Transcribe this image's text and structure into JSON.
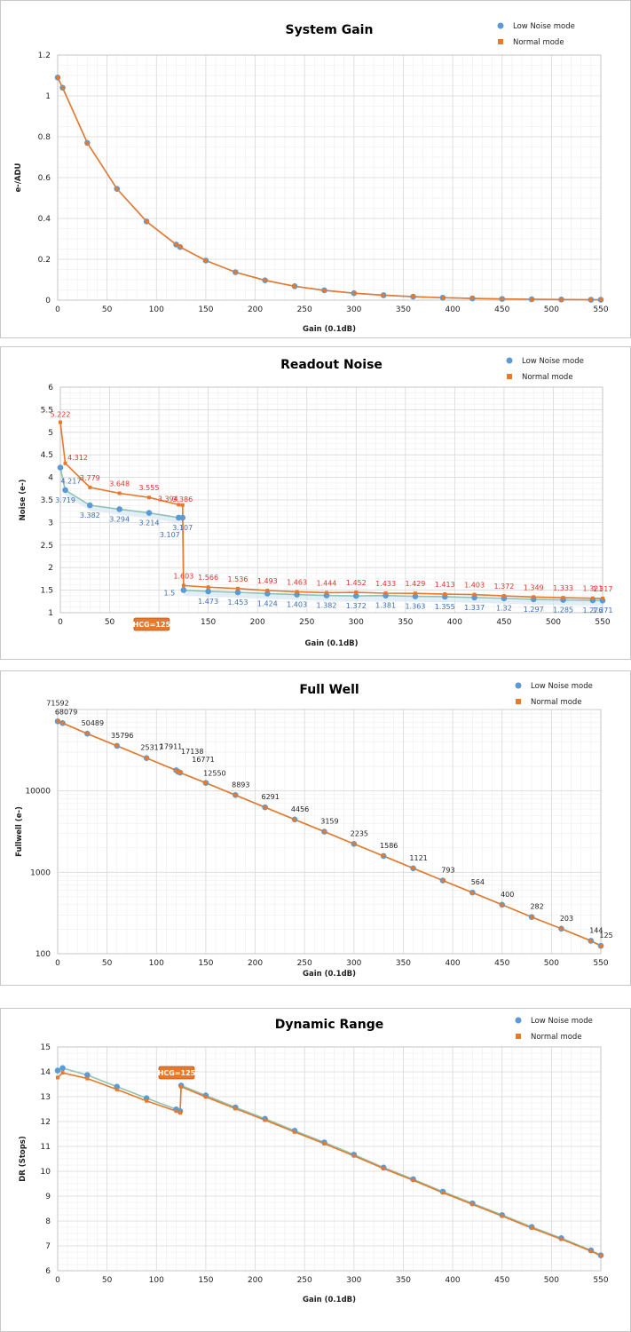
{
  "colors": {
    "low_noise": "#5b9bd5",
    "normal": "#e8782a",
    "red_label": "#e8312b",
    "blue_label": "#3a6fb5",
    "black_label": "#222222",
    "grid_major": "#d9d9d9",
    "grid_minor": "#eeeeee",
    "badge": "#e8782a"
  },
  "chart_data": [
    {
      "type": "line",
      "title": "System Gain",
      "xlabel": "Gain (0.1dB)",
      "ylabel": "e-/ADU",
      "xlim": [
        0,
        550
      ],
      "ylim": [
        0,
        1.2
      ],
      "x_ticks": [
        0,
        50,
        100,
        150,
        200,
        250,
        300,
        350,
        400,
        450,
        500,
        550
      ],
      "y_ticks": [
        0,
        0.2,
        0.4,
        0.6,
        0.8,
        1,
        1.2
      ],
      "y_tick_labels": [
        "0",
        "0.2",
        "0.4",
        "0.6",
        "0.8",
        "1",
        "1.2"
      ],
      "legend": "top-right",
      "grid": true,
      "series": [
        {
          "name": "Low Noise mode",
          "marker": "circle",
          "x": [
            0,
            5,
            30,
            60,
            90,
            120,
            124,
            150,
            180,
            210,
            240,
            270,
            300,
            330,
            360,
            390,
            420,
            450,
            480,
            510,
            540,
            550
          ],
          "y": [
            1.09,
            1.04,
            0.77,
            0.545,
            0.385,
            0.272,
            0.26,
            0.194,
            0.137,
            0.097,
            0.068,
            0.048,
            0.034,
            0.024,
            0.017,
            0.012,
            0.0085,
            0.006,
            0.0043,
            0.003,
            0.0021,
            0.002
          ]
        },
        {
          "name": "Normal mode",
          "marker": "square",
          "x": [
            0,
            5,
            30,
            60,
            90,
            120,
            124,
            150,
            180,
            210,
            240,
            270,
            300,
            330,
            360,
            390,
            420,
            450,
            480,
            510,
            540,
            550
          ],
          "y": [
            1.09,
            1.04,
            0.77,
            0.545,
            0.385,
            0.272,
            0.26,
            0.194,
            0.137,
            0.097,
            0.068,
            0.048,
            0.034,
            0.024,
            0.017,
            0.012,
            0.0085,
            0.006,
            0.0043,
            0.003,
            0.0021,
            0.002
          ]
        }
      ]
    },
    {
      "type": "line",
      "title": "Readout Noise",
      "xlabel": "Gain (0.1dB)",
      "ylabel": "Noise (e-)",
      "xlim": [
        0,
        550
      ],
      "ylim": [
        1,
        6
      ],
      "x_ticks": [
        0,
        50,
        100,
        150,
        200,
        250,
        300,
        350,
        400,
        450,
        500,
        550
      ],
      "y_ticks": [
        1,
        1.5,
        2,
        2.5,
        3,
        3.5,
        4,
        4.5,
        5,
        5.5,
        6
      ],
      "y_tick_labels": [
        "1",
        "1.5",
        "2",
        "2.5",
        "3",
        "3.5",
        "4",
        "4.5",
        "5",
        "5.5",
        "6"
      ],
      "legend": "top-right",
      "grid": true,
      "annotation": "HCG=125",
      "series": [
        {
          "name": "Low Noise mode",
          "marker": "circle",
          "x": [
            0,
            5,
            30,
            60,
            90,
            120,
            124,
            125,
            150,
            180,
            210,
            240,
            270,
            300,
            330,
            360,
            390,
            420,
            450,
            480,
            510,
            540,
            550
          ],
          "y": [
            4.217,
            3.719,
            3.382,
            3.294,
            3.214,
            3.107,
            3.107,
            1.5,
            1.473,
            1.453,
            1.424,
            1.403,
            1.382,
            1.372,
            1.381,
            1.363,
            1.355,
            1.337,
            1.32,
            1.297,
            1.285,
            1.276,
            1.271
          ],
          "labels": [
            "4.217",
            "3.719",
            "3.382",
            "3.294",
            "3.214",
            "3.107",
            "3.107",
            "1.5",
            "1.473",
            "1.453",
            "1.424",
            "1.403",
            "1.382",
            "1.372",
            "1.381",
            "1.363",
            "1.355",
            "1.337",
            "1.32",
            "1.297",
            "1.285",
            "1.276",
            "1.271"
          ]
        },
        {
          "name": "Normal mode",
          "marker": "square",
          "x": [
            0,
            5,
            30,
            60,
            90,
            120,
            124,
            125,
            150,
            180,
            210,
            240,
            270,
            300,
            330,
            360,
            390,
            420,
            450,
            480,
            510,
            540,
            550
          ],
          "y": [
            5.222,
            4.312,
            3.779,
            3.648,
            3.555,
            3.394,
            3.386,
            1.603,
            1.566,
            1.536,
            1.493,
            1.463,
            1.444,
            1.452,
            1.433,
            1.429,
            1.413,
            1.403,
            1.372,
            1.349,
            1.333,
            1.321,
            1.317
          ],
          "labels": [
            "5.222",
            "4.312",
            "3.779",
            "3.648",
            "3.555",
            "3.394",
            "3.386",
            "1.603",
            "1.566",
            "1.536",
            "1.493",
            "1.463",
            "1.444",
            "1.452",
            "1.433",
            "1.429",
            "1.413",
            "1.403",
            "1.372",
            "1.349",
            "1.333",
            "1.321",
            "1.317"
          ]
        }
      ]
    },
    {
      "type": "line",
      "title": "Full Well",
      "xlabel": "Gain (0.1dB)",
      "ylabel": "Fullwell (e-)",
      "y_scale": "log",
      "xlim": [
        0,
        550
      ],
      "ylim": [
        100,
        100000
      ],
      "x_ticks": [
        0,
        50,
        100,
        150,
        200,
        250,
        300,
        350,
        400,
        450,
        500,
        550
      ],
      "y_ticks": [
        100,
        1000,
        10000
      ],
      "y_tick_labels": [
        "100",
        "1000",
        "10000"
      ],
      "legend": "top-right",
      "grid": true,
      "series": [
        {
          "name": "Low Noise mode",
          "marker": "circle",
          "x": [
            0,
            5,
            30,
            60,
            90,
            120,
            122,
            124,
            150,
            180,
            210,
            240,
            270,
            300,
            330,
            360,
            390,
            420,
            450,
            480,
            510,
            540,
            550
          ],
          "y": [
            71592,
            68079,
            50489,
            35796,
            25317,
            17911,
            17138,
            16771,
            12550,
            8893,
            6291,
            4456,
            3159,
            2235,
            1586,
            1121,
            793,
            564,
            400,
            282,
            203,
            144,
            125
          ],
          "labels": [
            "71592",
            "68079",
            "50489",
            "35796",
            "25317",
            "17911",
            "17138",
            "16771",
            "12550",
            "8893",
            "6291",
            "4456",
            "3159",
            "2235",
            "1586",
            "1121",
            "793",
            "564",
            "400",
            "282",
            "203",
            "144",
            "125"
          ]
        },
        {
          "name": "Normal mode",
          "marker": "square",
          "x": [
            0,
            5,
            30,
            60,
            90,
            120,
            122,
            124,
            150,
            180,
            210,
            240,
            270,
            300,
            330,
            360,
            390,
            420,
            450,
            480,
            510,
            540,
            550
          ],
          "y": [
            71592,
            68079,
            50489,
            35796,
            25317,
            17911,
            17138,
            16771,
            12550,
            8893,
            6291,
            4456,
            3159,
            2235,
            1586,
            1121,
            793,
            564,
            400,
            282,
            203,
            144,
            125
          ]
        }
      ]
    },
    {
      "type": "line",
      "title": "Dynamic Range",
      "xlabel": "Gain (0.1dB)",
      "ylabel": "DR (Stops)",
      "xlim": [
        0,
        550
      ],
      "ylim": [
        6,
        15
      ],
      "x_ticks": [
        0,
        50,
        100,
        150,
        200,
        250,
        300,
        350,
        400,
        450,
        500,
        550
      ],
      "y_ticks": [
        6,
        7,
        8,
        9,
        10,
        11,
        12,
        13,
        14,
        15
      ],
      "y_tick_labels": [
        "6",
        "7",
        "8",
        "9",
        "10",
        "11",
        "12",
        "13",
        "14",
        "15"
      ],
      "legend": "top-right",
      "grid": true,
      "annotation": "HCG=125",
      "series": [
        {
          "name": "Low Noise mode",
          "marker": "circle",
          "x": [
            0,
            5,
            30,
            60,
            90,
            120,
            124,
            125,
            150,
            180,
            210,
            240,
            270,
            300,
            330,
            360,
            390,
            420,
            450,
            480,
            510,
            540,
            550
          ],
          "y": [
            14.05,
            14.15,
            13.87,
            13.4,
            12.94,
            12.49,
            12.42,
            13.45,
            13.05,
            12.57,
            12.11,
            11.63,
            11.16,
            10.67,
            10.15,
            9.68,
            9.18,
            8.71,
            8.24,
            7.76,
            7.31,
            6.82,
            6.62
          ]
        },
        {
          "name": "Normal mode",
          "marker": "square",
          "x": [
            0,
            5,
            30,
            60,
            90,
            120,
            124,
            125,
            150,
            180,
            210,
            240,
            270,
            300,
            330,
            360,
            390,
            420,
            450,
            480,
            510,
            540,
            550
          ],
          "y": [
            13.77,
            13.96,
            13.73,
            13.29,
            12.83,
            12.42,
            12.35,
            13.4,
            12.99,
            12.52,
            12.06,
            11.58,
            11.11,
            10.62,
            10.11,
            9.64,
            9.14,
            8.67,
            8.2,
            7.72,
            7.27,
            6.79,
            6.6
          ]
        }
      ]
    }
  ]
}
